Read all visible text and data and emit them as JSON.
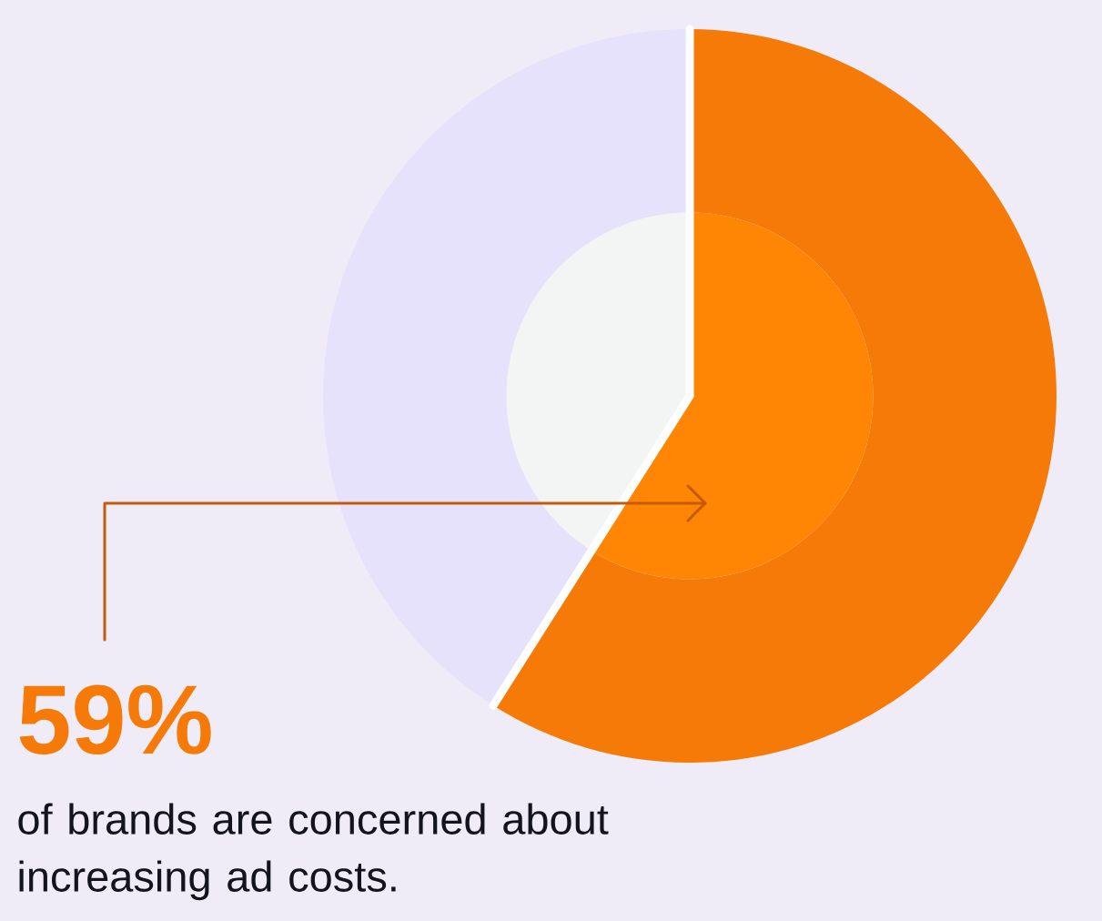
{
  "chart_data": {
    "type": "donut",
    "categories": [
      null,
      null
    ],
    "series": [
      {
        "values": [
          59,
          41
        ],
        "colors": [
          "#f57a07",
          "#e6e2fb"
        ],
        "value_labels": [
          "59%",
          null
        ]
      },
      {
        "type": "pie",
        "values": [
          59,
          41
        ],
        "colors": [
          "#ff8505",
          "#f3f4f4"
        ]
      }
    ],
    "annotations": [
      "of brands are concerned about increasing ad costs."
    ]
  }
}
